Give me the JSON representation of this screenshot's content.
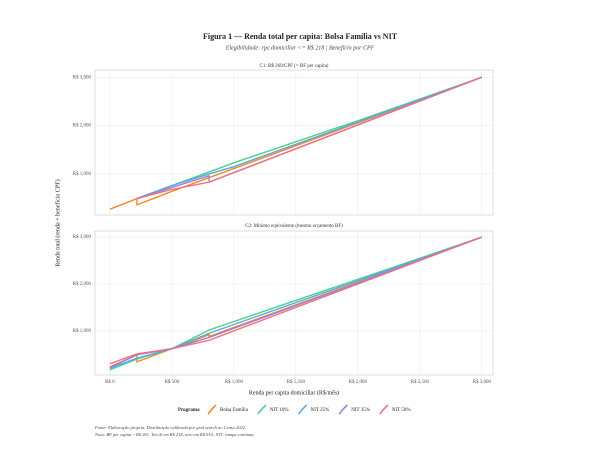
{
  "title": "Figura 1 — Renda total per capita: Bolsa Família vs NIT",
  "subtitle": "Elegibilidade: rpc domiciliar <= R$ 218 | Benefício por CPF",
  "y_axis_label": "Renda total (renda + benefício CPF)",
  "x_axis_label": "Renda per capita domiciliar (R$/mês)",
  "legend_title": "Programa",
  "notes": [
    "Fonte: Elaboração própria. Distribuição calibrada por grid search no Censo 2022.",
    "Nota: BF per capita ~ R$ 261. Teto/6 em R$ 218, zero em R$ 610; NIT: rampa contínua."
  ],
  "chart_data": [
    {
      "type": "line",
      "title": "C1: R$ 269/CPF (= BF per capita)",
      "grid": true,
      "xlim": [
        -120,
        3090
      ],
      "ylim": [
        150,
        3150
      ],
      "yticks": [
        {
          "value": 1000,
          "label": "R$ 1,000"
        },
        {
          "value": 2000,
          "label": "R$ 2,000"
        },
        {
          "value": 3000,
          "label": "R$ 3,000"
        }
      ],
      "series": [
        {
          "name": "Bolsa Família",
          "color": "#f08a24",
          "x": [
            0,
            218,
            218,
            500,
            3000
          ],
          "values": [
            270,
            487,
            360,
            640,
            3000
          ]
        },
        {
          "name": "NIT 10%",
          "color": "#4fd08a",
          "x": [
            218,
            1000,
            2000,
            3000
          ],
          "values": [
            490,
            1230,
            2100,
            3000
          ]
        },
        {
          "name": "NIT 25%",
          "color": "#5aa9e6",
          "x": [
            218,
            500,
            800,
            1000,
            3000
          ],
          "values": [
            490,
            760,
            1000,
            1150,
            3000
          ]
        },
        {
          "name": "NIT 35%",
          "color": "#a17fd6",
          "x": [
            218,
            500,
            800,
            800,
            3000
          ],
          "values": [
            490,
            720,
            960,
            830,
            3000
          ]
        },
        {
          "name": "NIT 50%",
          "color": "#f0707f",
          "x": [
            218,
            500,
            800,
            3000
          ],
          "values": [
            490,
            680,
            830,
            3000
          ]
        }
      ]
    },
    {
      "type": "line",
      "title": "C2: Mínimo equivalente (mesmo orçamento BF)",
      "grid": true,
      "xlim": [
        -120,
        3090
      ],
      "ylim": [
        60,
        3130
      ],
      "xticks": [
        {
          "value": 0,
          "label": "R$ 0"
        },
        {
          "value": 500,
          "label": "R$ 500"
        },
        {
          "value": 1000,
          "label": "R$ 1,000"
        },
        {
          "value": 1500,
          "label": "R$ 1,500"
        },
        {
          "value": 2000,
          "label": "R$ 2,000"
        },
        {
          "value": 2500,
          "label": "R$ 2,500"
        },
        {
          "value": 3000,
          "label": "R$ 3,000"
        }
      ],
      "yticks": [
        {
          "value": 1000,
          "label": "R$ 1,000"
        },
        {
          "value": 2000,
          "label": "R$ 2,000"
        },
        {
          "value": 3000,
          "label": "R$ 3,000"
        }
      ],
      "series": [
        {
          "x": [
            0,
            218,
            218,
            500,
            800,
            800,
            3000
          ],
          "values": [
            234,
            489,
            340,
            620,
            920,
            880,
            3000
          ]
        },
        {
          "x": [
            0,
            218,
            500,
            800,
            3000
          ],
          "values": [
            170,
            400,
            620,
            1020,
            3000
          ]
        },
        {
          "x": [
            0,
            218,
            500,
            800,
            3000
          ],
          "values": [
            200,
            420,
            620,
            950,
            3000
          ]
        },
        {
          "x": [
            0,
            218,
            500,
            800,
            3000
          ],
          "values": [
            215,
            490,
            620,
            860,
            3000
          ]
        },
        {
          "x": [
            0,
            218,
            500,
            800,
            3000
          ],
          "values": [
            300,
            510,
            620,
            800,
            3000
          ]
        }
      ]
    }
  ]
}
